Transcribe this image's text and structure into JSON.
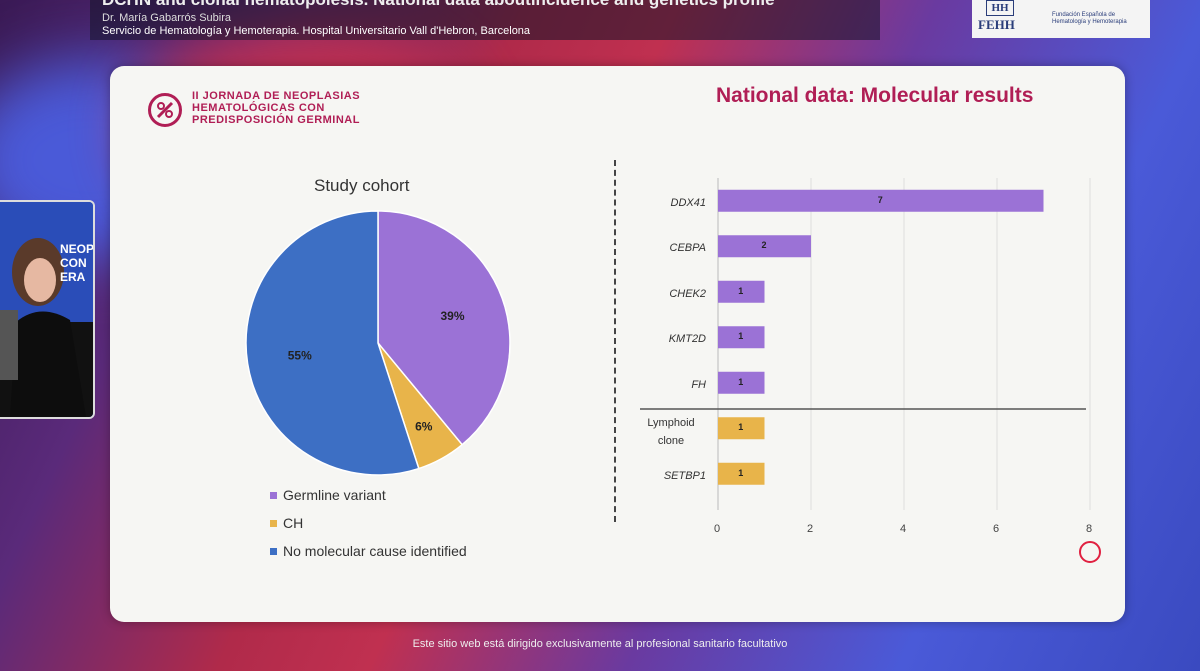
{
  "header": {
    "title": "DCHN and clonal hematopoiesis. National data aboutincidence and genetics profile",
    "speaker": "Dr. María Gabarrós Subira",
    "institution": "Servicio de Hematología y Hemoterapia. Hospital Universitario Vall d'Hebron, Barcelona"
  },
  "brand": {
    "hh": "HH",
    "fehh": "FEHH",
    "foundation": "Fundación Española de Hematología y Hemoterapia"
  },
  "webcam": {
    "banner": "NEOP CON ERA"
  },
  "slide": {
    "conference": [
      "II JORNADA DE NEOPLASIAS",
      "HEMATOLÓGICAS CON",
      "PREDISPOSICIÓN GERMINAL"
    ],
    "title": "National data: Molecular results"
  },
  "chart_data": [
    {
      "type": "pie",
      "title": "Study cohort",
      "slices": [
        {
          "name": "Germline variant",
          "value": 39,
          "label": "39%",
          "color": "#9b72d6"
        },
        {
          "name": "CH",
          "value": 6,
          "label": "6%",
          "color": "#e8b44a"
        },
        {
          "name": "No molecular cause identified",
          "value": 55,
          "label": "55%",
          "color": "#3d6fc4"
        }
      ]
    },
    {
      "type": "bar",
      "orientation": "horizontal",
      "categories": [
        "DDX41",
        "CEBPA",
        "CHEK2",
        "KMT2D",
        "FH",
        "Lymphoid clone",
        "SETBP1"
      ],
      "values": [
        7,
        2,
        1,
        1,
        1,
        1,
        1
      ],
      "colors": [
        "#9b72d6",
        "#9b72d6",
        "#9b72d6",
        "#9b72d6",
        "#9b72d6",
        "#e8b44a",
        "#e8b44a"
      ],
      "xlim": [
        0,
        8
      ],
      "xticks": [
        "0",
        "2",
        "4",
        "6",
        "8"
      ]
    }
  ],
  "footer": "Este sitio web está dirigido exclusivamente al profesional sanitario facultativo"
}
